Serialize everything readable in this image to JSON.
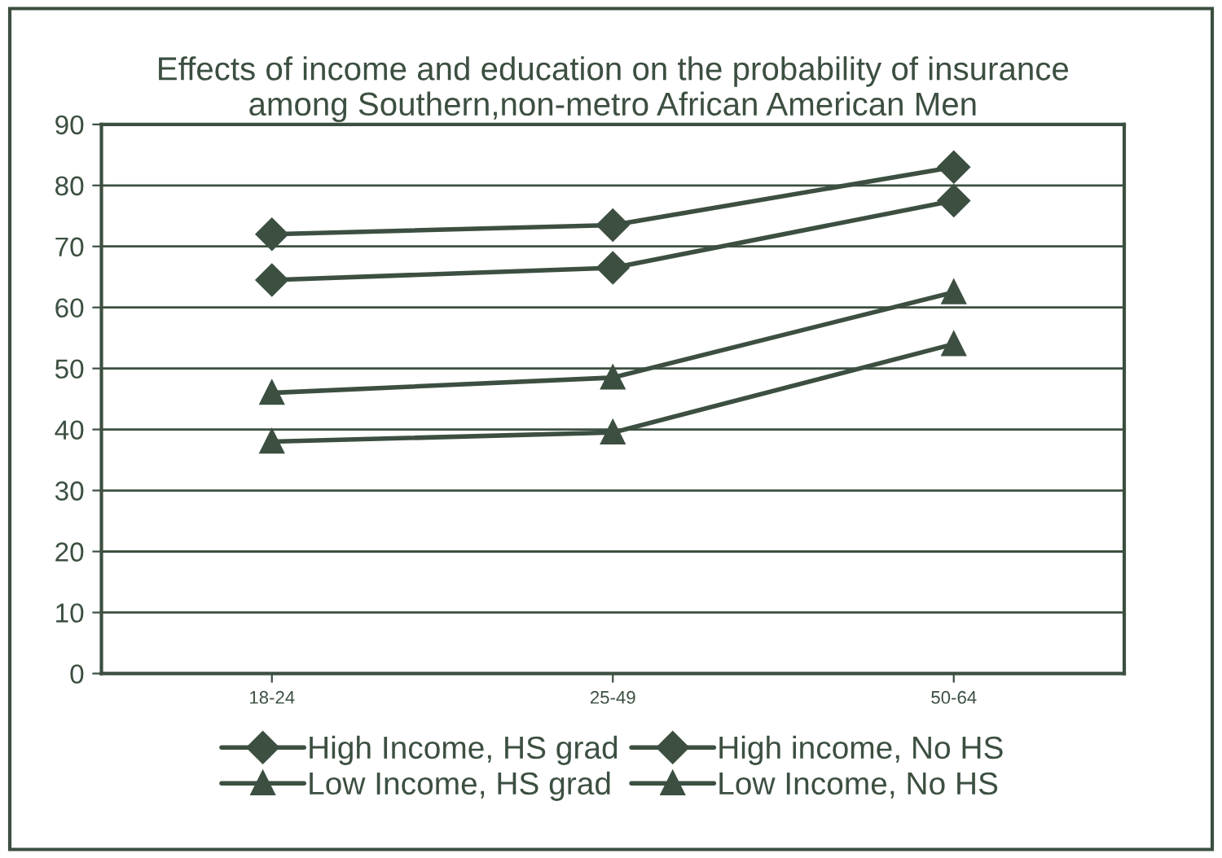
{
  "chart_data": {
    "type": "line",
    "title": "Effects of income and education on the probability of insurance\namong Southern,non-metro African American Men",
    "categories": [
      "18-24",
      "25-49",
      "50-64"
    ],
    "series": [
      {
        "name": "High Income, HS grad",
        "color": "#3c4f40",
        "marker": "diamond",
        "values": [
          72,
          73.5,
          83
        ]
      },
      {
        "name": "High income, No HS",
        "color": "#3c4f40",
        "marker": "diamond",
        "values": [
          64.5,
          66.5,
          77.5
        ]
      },
      {
        "name": "Low Income, HS grad",
        "color": "#3c4f40",
        "marker": "triangle",
        "values": [
          46,
          48.5,
          62.5
        ]
      },
      {
        "name": "Low Income, No HS",
        "color": "#3c4f40",
        "marker": "triangle",
        "values": [
          38,
          39.5,
          54
        ]
      }
    ],
    "ylim": [
      0,
      90
    ],
    "yticks": [
      0,
      10,
      20,
      30,
      40,
      50,
      60,
      70,
      80,
      90
    ],
    "grid": "y",
    "legend": "bottom",
    "line_style": "solid"
  }
}
